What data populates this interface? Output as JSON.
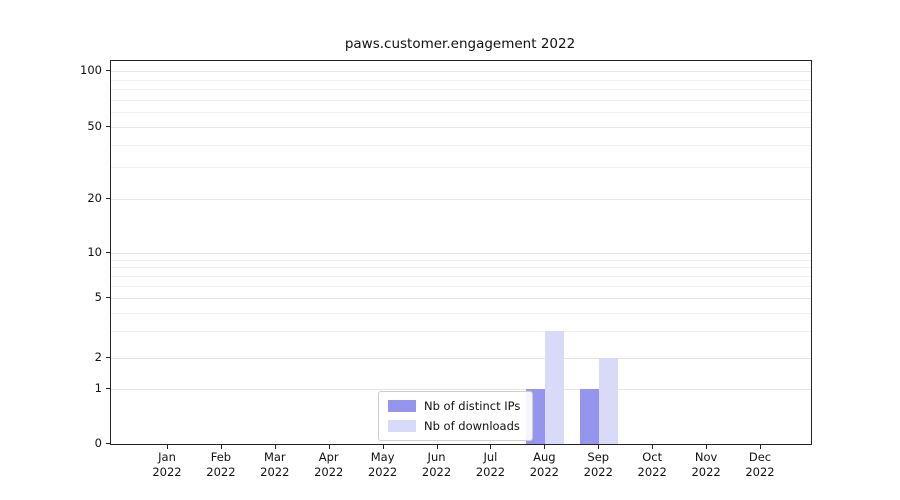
{
  "chart_data": {
    "type": "bar",
    "title": "paws.customer.engagement 2022",
    "categories": [
      "Jan 2022",
      "Feb 2022",
      "Mar 2022",
      "Apr 2022",
      "May 2022",
      "Jun 2022",
      "Jul 2022",
      "Aug 2022",
      "Sep 2022",
      "Oct 2022",
      "Nov 2022",
      "Dec 2022"
    ],
    "series": [
      {
        "name": "Nb of distinct IPs",
        "color": "#9595ee",
        "values": [
          0,
          0,
          0,
          0,
          0,
          0,
          0,
          1,
          1,
          0,
          0,
          0
        ]
      },
      {
        "name": "Nb of downloads",
        "color": "#d9d9f8",
        "values": [
          0,
          0,
          0,
          0,
          0,
          0,
          0,
          3,
          2,
          0,
          0,
          0
        ]
      }
    ],
    "yscale": "symlog",
    "ylim": [
      0,
      115
    ],
    "y_ticks": [
      0,
      1,
      2,
      5,
      10,
      20,
      50,
      100
    ],
    "y_minor_gridlines": [
      3,
      4,
      6,
      7,
      8,
      9,
      30,
      40,
      60,
      70,
      80,
      90
    ],
    "xlabel": "",
    "ylabel": "",
    "grid": "horizontal",
    "legend_position": "lower center inside plot"
  }
}
